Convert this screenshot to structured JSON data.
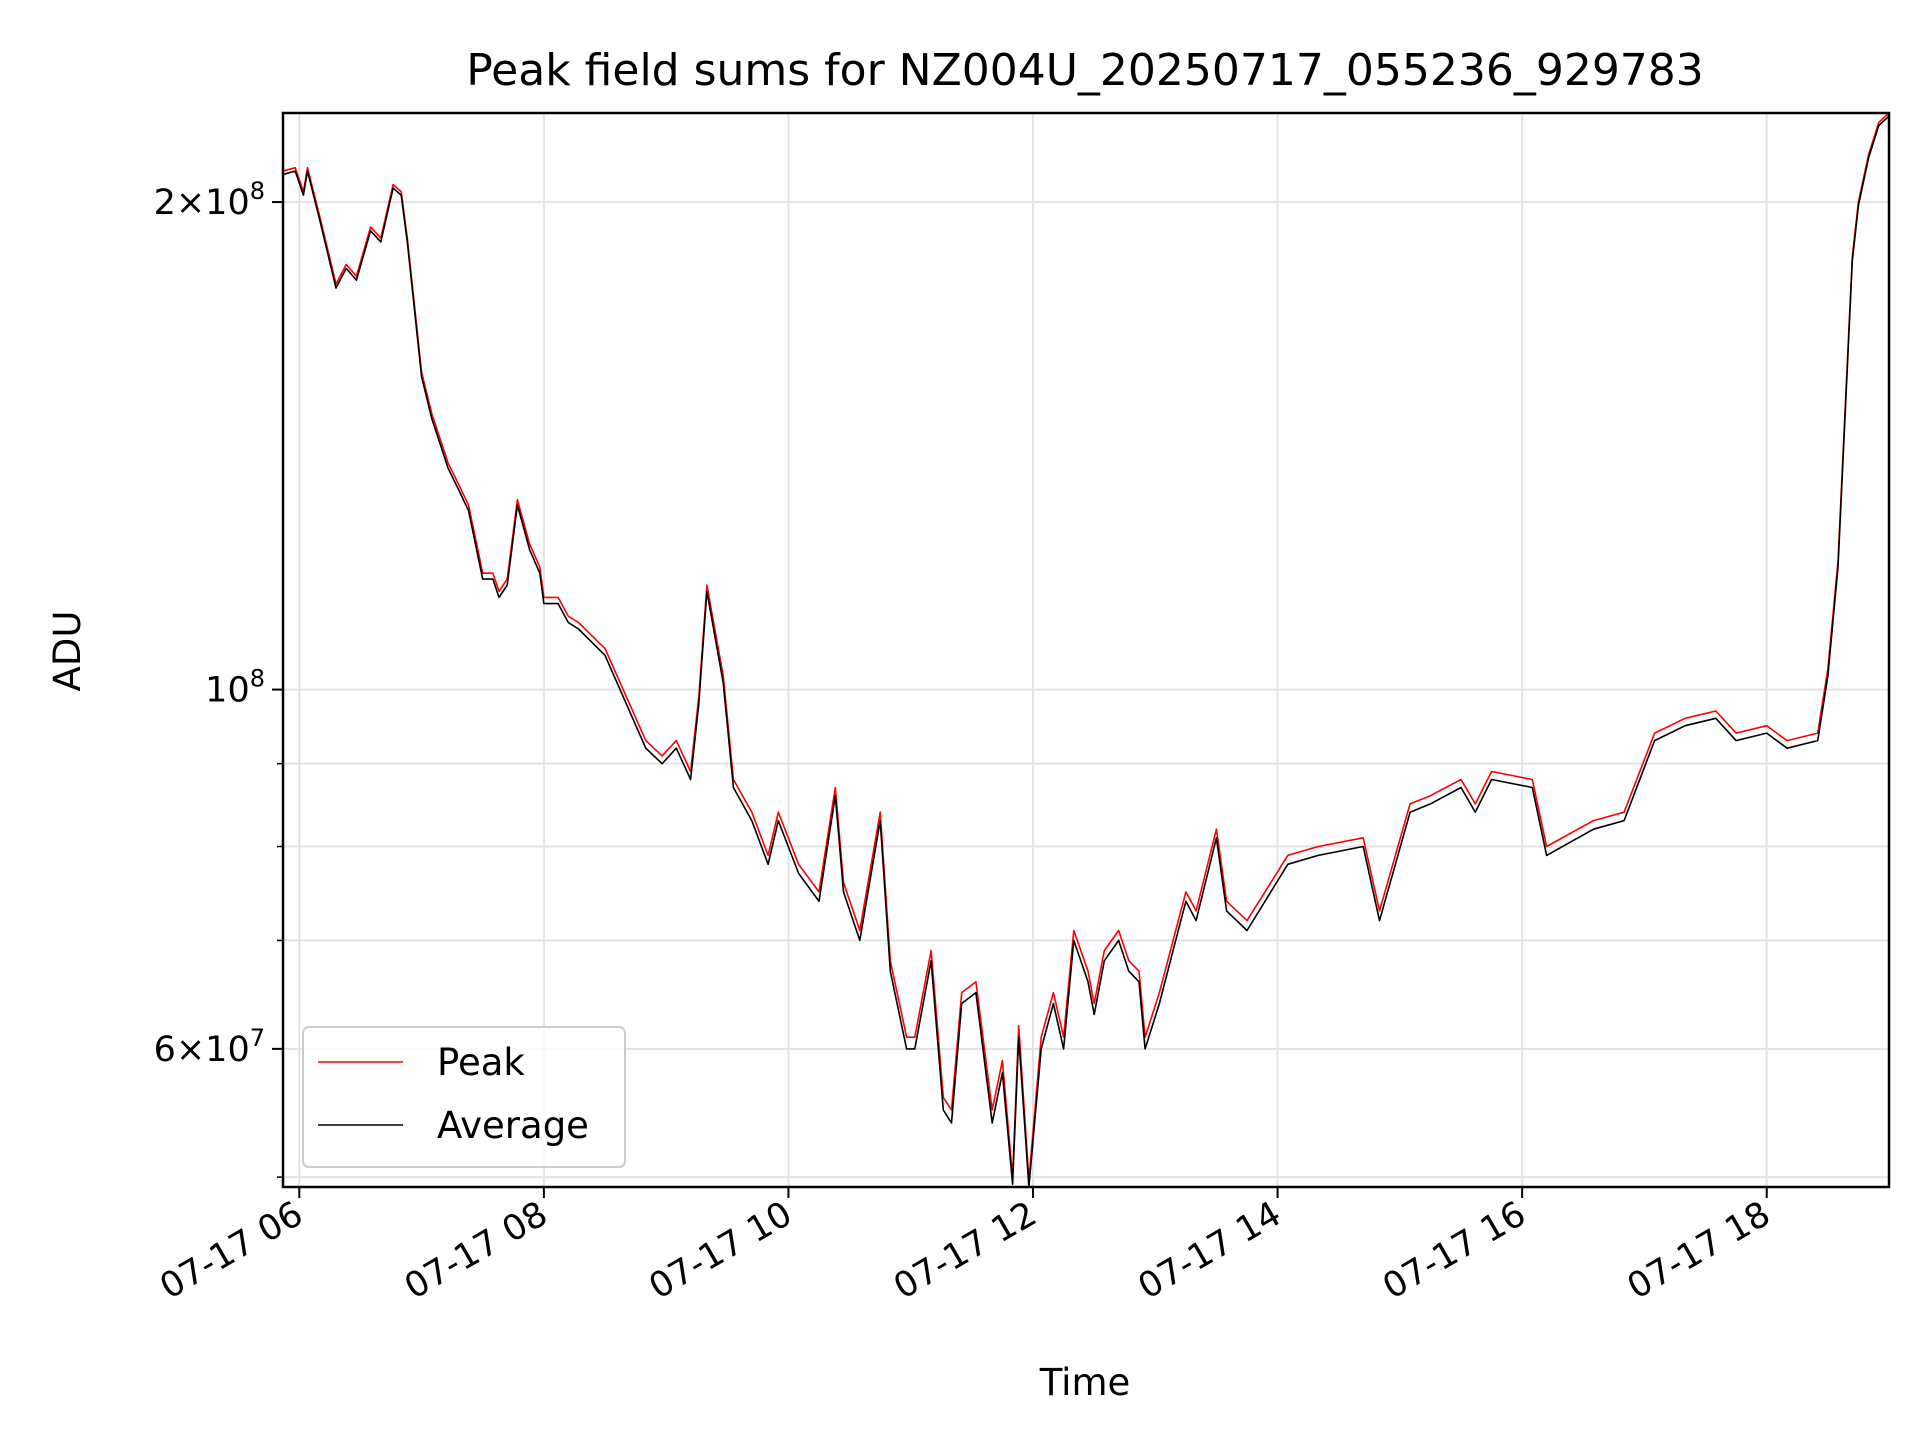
{
  "chart_data": {
    "type": "line",
    "title": "Peak field sums for NZ004U_20250717_055236_929783",
    "xlabel": "Time",
    "ylabel": "ADU",
    "y_scale": "log",
    "grid": true,
    "legend_position": "lower-left",
    "xlim": [
      "2025-07-17 05:52",
      "2025-07-17 19:00"
    ],
    "ylim": [
      49300000,
      227000000
    ],
    "x_ticks": [
      {
        "value": "2025-07-17 06:00",
        "label": "07-17 06"
      },
      {
        "value": "2025-07-17 08:00",
        "label": "07-17 08"
      },
      {
        "value": "2025-07-17 10:00",
        "label": "07-17 10"
      },
      {
        "value": "2025-07-17 12:00",
        "label": "07-17 12"
      },
      {
        "value": "2025-07-17 14:00",
        "label": "07-17 14"
      },
      {
        "value": "2025-07-17 16:00",
        "label": "07-17 16"
      },
      {
        "value": "2025-07-17 18:00",
        "label": "07-17 18"
      }
    ],
    "y_major_ticks": [
      {
        "value": 60000000,
        "label_base": "6×10",
        "label_exp": "7"
      },
      {
        "value": 100000000,
        "label_base": "10",
        "label_exp": "8"
      },
      {
        "value": 200000000,
        "label_base": "2×10",
        "label_exp": "8"
      }
    ],
    "y_minor_ticks": [
      50000000,
      70000000,
      80000000,
      90000000
    ],
    "x": [
      "2025-07-17 05:52",
      "2025-07-17 05:58",
      "2025-07-17 06:02",
      "2025-07-17 06:04",
      "2025-07-17 06:10",
      "2025-07-17 06:18",
      "2025-07-17 06:23",
      "2025-07-17 06:28",
      "2025-07-17 06:35",
      "2025-07-17 06:40",
      "2025-07-17 06:46",
      "2025-07-17 06:50",
      "2025-07-17 06:53",
      "2025-07-17 07:00",
      "2025-07-17 07:05",
      "2025-07-17 07:13",
      "2025-07-17 07:18",
      "2025-07-17 07:23",
      "2025-07-17 07:30",
      "2025-07-17 07:35",
      "2025-07-17 07:38",
      "2025-07-17 07:42",
      "2025-07-17 07:47",
      "2025-07-17 07:53",
      "2025-07-17 07:58",
      "2025-07-17 08:00",
      "2025-07-17 08:07",
      "2025-07-17 08:12",
      "2025-07-17 08:17",
      "2025-07-17 08:30",
      "2025-07-17 08:50",
      "2025-07-17 08:58",
      "2025-07-17 09:05",
      "2025-07-17 09:12",
      "2025-07-17 09:16",
      "2025-07-17 09:20",
      "2025-07-17 09:25",
      "2025-07-17 09:28",
      "2025-07-17 09:33",
      "2025-07-17 09:42",
      "2025-07-17 09:50",
      "2025-07-17 09:55",
      "2025-07-17 10:05",
      "2025-07-17 10:15",
      "2025-07-17 10:23",
      "2025-07-17 10:27",
      "2025-07-17 10:35",
      "2025-07-17 10:45",
      "2025-07-17 10:50",
      "2025-07-17 10:58",
      "2025-07-17 11:02",
      "2025-07-17 11:10",
      "2025-07-17 11:16",
      "2025-07-17 11:20",
      "2025-07-17 11:25",
      "2025-07-17 11:32",
      "2025-07-17 11:40",
      "2025-07-17 11:45",
      "2025-07-17 11:50",
      "2025-07-17 11:53",
      "2025-07-17 11:58",
      "2025-07-17 12:04",
      "2025-07-17 12:10",
      "2025-07-17 12:15",
      "2025-07-17 12:20",
      "2025-07-17 12:27",
      "2025-07-17 12:30",
      "2025-07-17 12:35",
      "2025-07-17 12:42",
      "2025-07-17 12:47",
      "2025-07-17 12:52",
      "2025-07-17 12:55",
      "2025-07-17 13:02",
      "2025-07-17 13:10",
      "2025-07-17 13:15",
      "2025-07-17 13:20",
      "2025-07-17 13:30",
      "2025-07-17 13:35",
      "2025-07-17 13:45",
      "2025-07-17 14:05",
      "2025-07-17 14:20",
      "2025-07-17 14:42",
      "2025-07-17 14:50",
      "2025-07-17 15:05",
      "2025-07-17 15:15",
      "2025-07-17 15:30",
      "2025-07-17 15:37",
      "2025-07-17 15:45",
      "2025-07-17 16:05",
      "2025-07-17 16:12",
      "2025-07-17 16:35",
      "2025-07-17 16:50",
      "2025-07-17 17:05",
      "2025-07-17 17:20",
      "2025-07-17 17:35",
      "2025-07-17 17:45",
      "2025-07-17 18:00",
      "2025-07-17 18:10",
      "2025-07-17 18:25",
      "2025-07-17 18:30",
      "2025-07-17 18:35",
      "2025-07-17 18:42",
      "2025-07-17 18:45",
      "2025-07-17 18:50",
      "2025-07-17 18:55",
      "2025-07-17 19:00"
    ],
    "series": [
      {
        "name": "Peak",
        "color": "#ff0000",
        "values": [
          209000000,
          210000000,
          203000000,
          210000000,
          196000000,
          178000000,
          183000000,
          180000000,
          193000000,
          190000000,
          205000000,
          203000000,
          190000000,
          157000000,
          148000000,
          138000000,
          134000000,
          130000000,
          118000000,
          118000000,
          115000000,
          117000000,
          131000000,
          123000000,
          119000000,
          114000000,
          114000000,
          111000000,
          110000000,
          106000000,
          93000000,
          91000000,
          93000000,
          89000000,
          99000000,
          116000000,
          107000000,
          102000000,
          88000000,
          84000000,
          79000000,
          84000000,
          78000000,
          75000000,
          87000000,
          76000000,
          71000000,
          84000000,
          68000000,
          61000000,
          61000000,
          69000000,
          56000000,
          55000000,
          65000000,
          66000000,
          55000000,
          59000000,
          50000000,
          62000000,
          49800000,
          61000000,
          65000000,
          61000000,
          71000000,
          67000000,
          64000000,
          69000000,
          71000000,
          68000000,
          67000000,
          61000000,
          65000000,
          71000000,
          75000000,
          73000000,
          82000000,
          74000000,
          72000000,
          79000000,
          80000000,
          81000000,
          73000000,
          85000000,
          86000000,
          88000000,
          85000000,
          89000000,
          88000000,
          80000000,
          83000000,
          84000000,
          94000000,
          96000000,
          97000000,
          94000000,
          95000000,
          93000000,
          94000000,
          103000000,
          120000000,
          185000000,
          200000000,
          214000000,
          224000000,
          227000000
        ]
      },
      {
        "name": "Average",
        "color": "#000000",
        "values": [
          208000000,
          209000000,
          202000000,
          209000000,
          195000000,
          177000000,
          182000000,
          179000000,
          192000000,
          189000000,
          204000000,
          202000000,
          189000000,
          156000000,
          147000000,
          137000000,
          133000000,
          129000000,
          117000000,
          117000000,
          114000000,
          116000000,
          130000000,
          122000000,
          118000000,
          113000000,
          113000000,
          110000000,
          109000000,
          105000000,
          92000000,
          90000000,
          92000000,
          88000000,
          98000000,
          115000000,
          106000000,
          101000000,
          87000000,
          83000000,
          78000000,
          83000000,
          77000000,
          74000000,
          86000000,
          75000000,
          70000000,
          83000000,
          67000000,
          60000000,
          60000000,
          68000000,
          55000000,
          54000000,
          64000000,
          65000000,
          54000000,
          58000000,
          49500000,
          61000000,
          49300000,
          60000000,
          64000000,
          60000000,
          70000000,
          66000000,
          63000000,
          68000000,
          70000000,
          67000000,
          66000000,
          60000000,
          64000000,
          70000000,
          74000000,
          72000000,
          81000000,
          73000000,
          71000000,
          78000000,
          79000000,
          80000000,
          72000000,
          84000000,
          85000000,
          87000000,
          84000000,
          88000000,
          87000000,
          79000000,
          82000000,
          83000000,
          93000000,
          95000000,
          96000000,
          93000000,
          94000000,
          92000000,
          93000000,
          102000000,
          119000000,
          184000000,
          199000000,
          213000000,
          223000000,
          226000000
        ]
      }
    ]
  }
}
